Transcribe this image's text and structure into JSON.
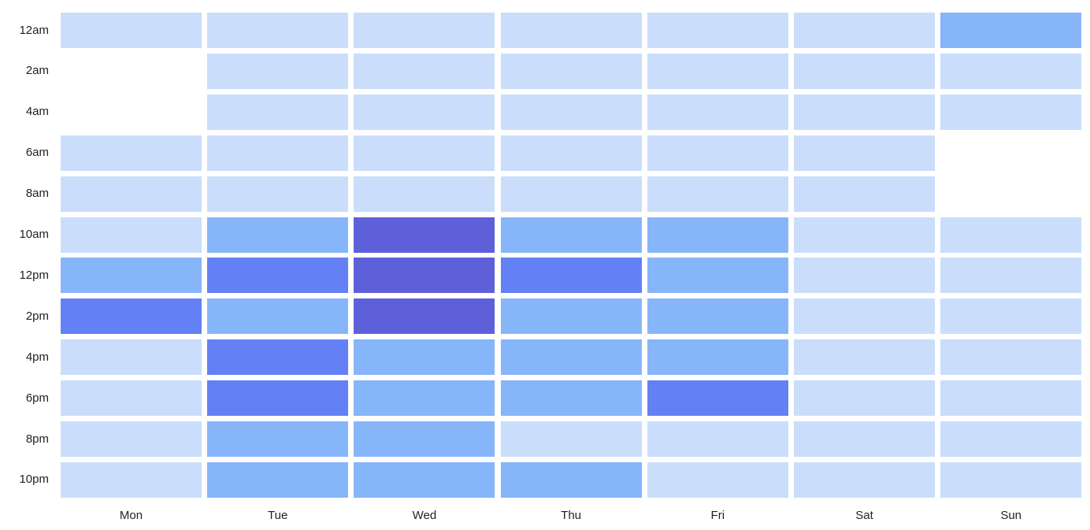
{
  "chart_data": {
    "type": "heatmap",
    "x_categories": [
      "Mon",
      "Tue",
      "Wed",
      "Thu",
      "Fri",
      "Sat",
      "Sun"
    ],
    "y_categories": [
      "12am",
      "2am",
      "4am",
      "6am",
      "8am",
      "10am",
      "12pm",
      "2pm",
      "4pm",
      "6pm",
      "8pm",
      "10pm"
    ],
    "levels": [
      [
        1,
        1,
        1,
        1,
        1,
        1,
        2
      ],
      [
        0,
        1,
        1,
        1,
        1,
        1,
        1
      ],
      [
        0,
        1,
        1,
        1,
        1,
        1,
        1
      ],
      [
        1,
        1,
        1,
        1,
        1,
        1,
        0
      ],
      [
        1,
        1,
        1,
        1,
        1,
        1,
        0
      ],
      [
        1,
        2,
        4,
        2,
        2,
        1,
        1
      ],
      [
        2,
        3,
        4,
        3,
        2,
        1,
        1
      ],
      [
        3,
        2,
        4,
        2,
        2,
        1,
        1
      ],
      [
        1,
        3,
        2,
        2,
        2,
        1,
        1
      ],
      [
        1,
        3,
        2,
        2,
        3,
        1,
        1
      ],
      [
        1,
        2,
        2,
        1,
        1,
        1,
        1
      ],
      [
        1,
        2,
        2,
        2,
        1,
        1,
        1
      ]
    ],
    "level_colors": [
      "#ffffff",
      "#cadefb",
      "#87b5f9",
      "#6381f4",
      "#5d60d8"
    ],
    "legend": "none",
    "grid": false
  }
}
